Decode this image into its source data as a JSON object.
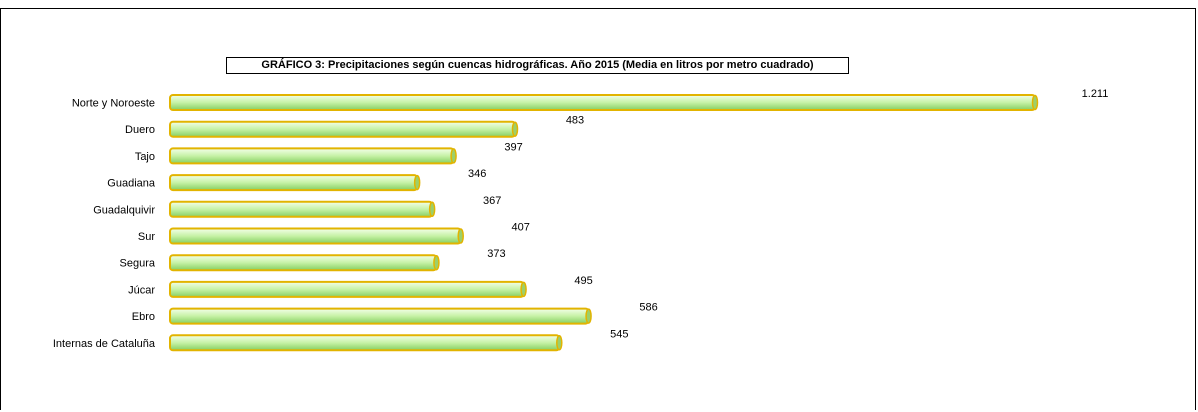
{
  "chart_data": {
    "type": "bar",
    "orientation": "horizontal",
    "title": "GRÁFICO 3: Precipitaciones según cuencas hidrográficas. Año 2015 (Media en litros por metro cuadrado)",
    "categories": [
      "Norte y Noroeste",
      "Duero",
      "Tajo",
      "Guadiana",
      "Guadalquivir",
      "Sur",
      "Segura",
      "Júcar",
      "Ebro",
      "Internas de Cataluña"
    ],
    "values": [
      1211,
      483,
      397,
      346,
      367,
      407,
      373,
      495,
      586,
      545
    ],
    "value_labels": [
      "1.211",
      "483",
      "397",
      "346",
      "367",
      "407",
      "373",
      "495",
      "586",
      "545"
    ],
    "grid": false,
    "legend": "none",
    "colors": {
      "bar_fill_light": "#eeffdd",
      "bar_fill_dark": "#8fd66e",
      "bar_outline": "#e2b400"
    }
  }
}
